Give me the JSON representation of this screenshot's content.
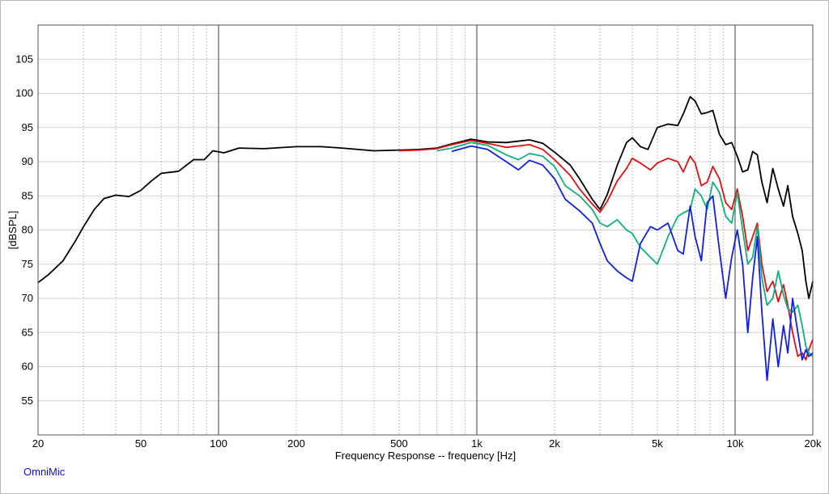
{
  "brand_label": "OmniMic",
  "chart_data": {
    "type": "line",
    "title": "",
    "xlabel": "Frequency Response -- frequency [Hz]",
    "ylabel": "[dBSPL]",
    "x_scale": "log",
    "xlim": [
      20,
      20000
    ],
    "ylim": [
      50,
      110
    ],
    "grid": true,
    "x_tick_values": [
      20,
      50,
      100,
      200,
      500,
      1000,
      2000,
      5000,
      10000,
      20000
    ],
    "x_tick_labels": [
      "20",
      "50",
      "100",
      "200",
      "500",
      "1k",
      "2k",
      "5k",
      "10k",
      "20k"
    ],
    "y_tick_values": [
      55,
      60,
      65,
      70,
      75,
      80,
      85,
      90,
      95,
      100,
      105
    ],
    "y_tick_labels": [
      "55",
      "60",
      "65",
      "70",
      "75",
      "80",
      "85",
      "90",
      "95",
      "100",
      "105"
    ],
    "series": [
      {
        "color": "#000000",
        "points": [
          [
            20,
            72.3
          ],
          [
            22,
            73.5
          ],
          [
            25,
            75.5
          ],
          [
            28,
            78.5
          ],
          [
            30,
            80.5
          ],
          [
            33,
            83.0
          ],
          [
            36,
            84.6
          ],
          [
            40,
            85.1
          ],
          [
            45,
            84.9
          ],
          [
            50,
            85.8
          ],
          [
            55,
            87.2
          ],
          [
            60,
            88.3
          ],
          [
            70,
            88.6
          ],
          [
            80,
            90.3
          ],
          [
            88,
            90.3
          ],
          [
            95,
            91.6
          ],
          [
            105,
            91.3
          ],
          [
            120,
            92.0
          ],
          [
            150,
            91.9
          ],
          [
            200,
            92.2
          ],
          [
            250,
            92.2
          ],
          [
            300,
            92.0
          ],
          [
            400,
            91.6
          ],
          [
            500,
            91.7
          ],
          [
            600,
            91.8
          ],
          [
            700,
            92.0
          ],
          [
            800,
            92.6
          ],
          [
            950,
            93.3
          ],
          [
            1100,
            92.9
          ],
          [
            1300,
            92.8
          ],
          [
            1600,
            93.2
          ],
          [
            1800,
            92.7
          ],
          [
            2000,
            91.4
          ],
          [
            2300,
            89.5
          ],
          [
            2500,
            87.5
          ],
          [
            2800,
            84.5
          ],
          [
            3000,
            83.0
          ],
          [
            3200,
            85.2
          ],
          [
            3500,
            89.5
          ],
          [
            3800,
            92.8
          ],
          [
            4000,
            93.5
          ],
          [
            4300,
            92.2
          ],
          [
            4600,
            91.8
          ],
          [
            5000,
            95.0
          ],
          [
            5500,
            95.5
          ],
          [
            6000,
            95.3
          ],
          [
            6300,
            97.0
          ],
          [
            6700,
            99.5
          ],
          [
            7000,
            98.9
          ],
          [
            7400,
            97.0
          ],
          [
            7800,
            97.2
          ],
          [
            8200,
            97.5
          ],
          [
            8700,
            94.0
          ],
          [
            9200,
            92.5
          ],
          [
            9700,
            92.8
          ],
          [
            10200,
            90.8
          ],
          [
            10700,
            88.5
          ],
          [
            11200,
            88.8
          ],
          [
            11700,
            91.5
          ],
          [
            12200,
            91.0
          ],
          [
            12700,
            87.0
          ],
          [
            13300,
            84.0
          ],
          [
            14000,
            89.0
          ],
          [
            14700,
            86.0
          ],
          [
            15400,
            83.5
          ],
          [
            16000,
            86.5
          ],
          [
            16700,
            82.0
          ],
          [
            17500,
            79.5
          ],
          [
            18200,
            77.0
          ],
          [
            18800,
            72.5
          ],
          [
            19300,
            70.0
          ],
          [
            20000,
            72.5
          ]
        ]
      },
      {
        "color": "#e01010",
        "points": [
          [
            500,
            91.6
          ],
          [
            600,
            91.7
          ],
          [
            700,
            91.9
          ],
          [
            800,
            92.5
          ],
          [
            950,
            93.1
          ],
          [
            1100,
            92.7
          ],
          [
            1300,
            92.1
          ],
          [
            1600,
            92.5
          ],
          [
            1800,
            91.8
          ],
          [
            2000,
            90.3
          ],
          [
            2300,
            88.0
          ],
          [
            2500,
            86.0
          ],
          [
            2800,
            83.8
          ],
          [
            3000,
            82.6
          ],
          [
            3200,
            84.2
          ],
          [
            3500,
            87.2
          ],
          [
            3800,
            89.0
          ],
          [
            4000,
            90.5
          ],
          [
            4300,
            89.8
          ],
          [
            4700,
            88.8
          ],
          [
            5000,
            89.8
          ],
          [
            5500,
            90.5
          ],
          [
            6000,
            90.0
          ],
          [
            6300,
            88.5
          ],
          [
            6700,
            90.8
          ],
          [
            7000,
            89.8
          ],
          [
            7400,
            86.5
          ],
          [
            7800,
            87.0
          ],
          [
            8200,
            89.3
          ],
          [
            8700,
            87.5
          ],
          [
            9200,
            84.0
          ],
          [
            9700,
            83.0
          ],
          [
            10200,
            86.0
          ],
          [
            10700,
            82.0
          ],
          [
            11200,
            77.0
          ],
          [
            11700,
            79.0
          ],
          [
            12200,
            81.0
          ],
          [
            12700,
            75.0
          ],
          [
            13300,
            71.0
          ],
          [
            14000,
            72.5
          ],
          [
            14700,
            69.5
          ],
          [
            15400,
            72.0
          ],
          [
            16000,
            69.0
          ],
          [
            16700,
            65.0
          ],
          [
            17500,
            61.5
          ],
          [
            18200,
            62.0
          ],
          [
            18800,
            61.0
          ],
          [
            19300,
            62.5
          ],
          [
            20000,
            64.0
          ]
        ]
      },
      {
        "color": "#10b080",
        "points": [
          [
            700,
            91.6
          ],
          [
            800,
            92.0
          ],
          [
            950,
            92.8
          ],
          [
            1100,
            92.4
          ],
          [
            1300,
            91.0
          ],
          [
            1450,
            90.3
          ],
          [
            1600,
            91.2
          ],
          [
            1800,
            90.8
          ],
          [
            2000,
            89.3
          ],
          [
            2200,
            86.5
          ],
          [
            2500,
            85.0
          ],
          [
            2800,
            83.0
          ],
          [
            3000,
            81.0
          ],
          [
            3200,
            80.5
          ],
          [
            3500,
            81.5
          ],
          [
            3800,
            80.0
          ],
          [
            4000,
            79.5
          ],
          [
            4300,
            77.5
          ],
          [
            4700,
            76.0
          ],
          [
            5000,
            75.0
          ],
          [
            5500,
            79.0
          ],
          [
            6000,
            82.0
          ],
          [
            6300,
            82.5
          ],
          [
            6700,
            83.0
          ],
          [
            7000,
            86.0
          ],
          [
            7400,
            85.0
          ],
          [
            7800,
            83.0
          ],
          [
            8200,
            87.0
          ],
          [
            8700,
            85.5
          ],
          [
            9200,
            82.0
          ],
          [
            9700,
            81.0
          ],
          [
            10200,
            85.5
          ],
          [
            10700,
            80.0
          ],
          [
            11200,
            75.0
          ],
          [
            11700,
            76.0
          ],
          [
            12200,
            80.5
          ],
          [
            12700,
            73.0
          ],
          [
            13300,
            69.0
          ],
          [
            14000,
            70.0
          ],
          [
            14700,
            74.0
          ],
          [
            15400,
            70.5
          ],
          [
            16000,
            68.5
          ],
          [
            16700,
            68.0
          ],
          [
            17500,
            69.0
          ],
          [
            18200,
            66.0
          ],
          [
            18800,
            63.0
          ],
          [
            19300,
            62.0
          ],
          [
            20000,
            61.5
          ]
        ]
      },
      {
        "color": "#1020e0",
        "points": [
          [
            800,
            91.5
          ],
          [
            950,
            92.3
          ],
          [
            1100,
            91.8
          ],
          [
            1300,
            90.0
          ],
          [
            1450,
            88.8
          ],
          [
            1600,
            90.2
          ],
          [
            1800,
            89.5
          ],
          [
            2000,
            87.5
          ],
          [
            2200,
            84.5
          ],
          [
            2500,
            82.8
          ],
          [
            2800,
            81.0
          ],
          [
            3000,
            78.0
          ],
          [
            3200,
            75.5
          ],
          [
            3500,
            74.0
          ],
          [
            3800,
            73.0
          ],
          [
            4000,
            72.5
          ],
          [
            4300,
            78.0
          ],
          [
            4700,
            80.5
          ],
          [
            5000,
            80.0
          ],
          [
            5500,
            81.0
          ],
          [
            6000,
            77.0
          ],
          [
            6300,
            76.5
          ],
          [
            6700,
            83.5
          ],
          [
            7000,
            79.0
          ],
          [
            7400,
            75.5
          ],
          [
            7800,
            84.0
          ],
          [
            8200,
            85.0
          ],
          [
            8700,
            77.0
          ],
          [
            9200,
            70.0
          ],
          [
            9700,
            76.0
          ],
          [
            10200,
            80.0
          ],
          [
            10700,
            75.0
          ],
          [
            11200,
            65.0
          ],
          [
            11700,
            73.0
          ],
          [
            12200,
            79.0
          ],
          [
            12700,
            68.0
          ],
          [
            13300,
            58.0
          ],
          [
            14000,
            67.0
          ],
          [
            14700,
            60.0
          ],
          [
            15400,
            66.0
          ],
          [
            16000,
            62.0
          ],
          [
            16700,
            70.0
          ],
          [
            17500,
            65.0
          ],
          [
            18200,
            61.0
          ],
          [
            18800,
            62.5
          ],
          [
            19300,
            61.5
          ],
          [
            20000,
            62.0
          ]
        ]
      }
    ]
  }
}
